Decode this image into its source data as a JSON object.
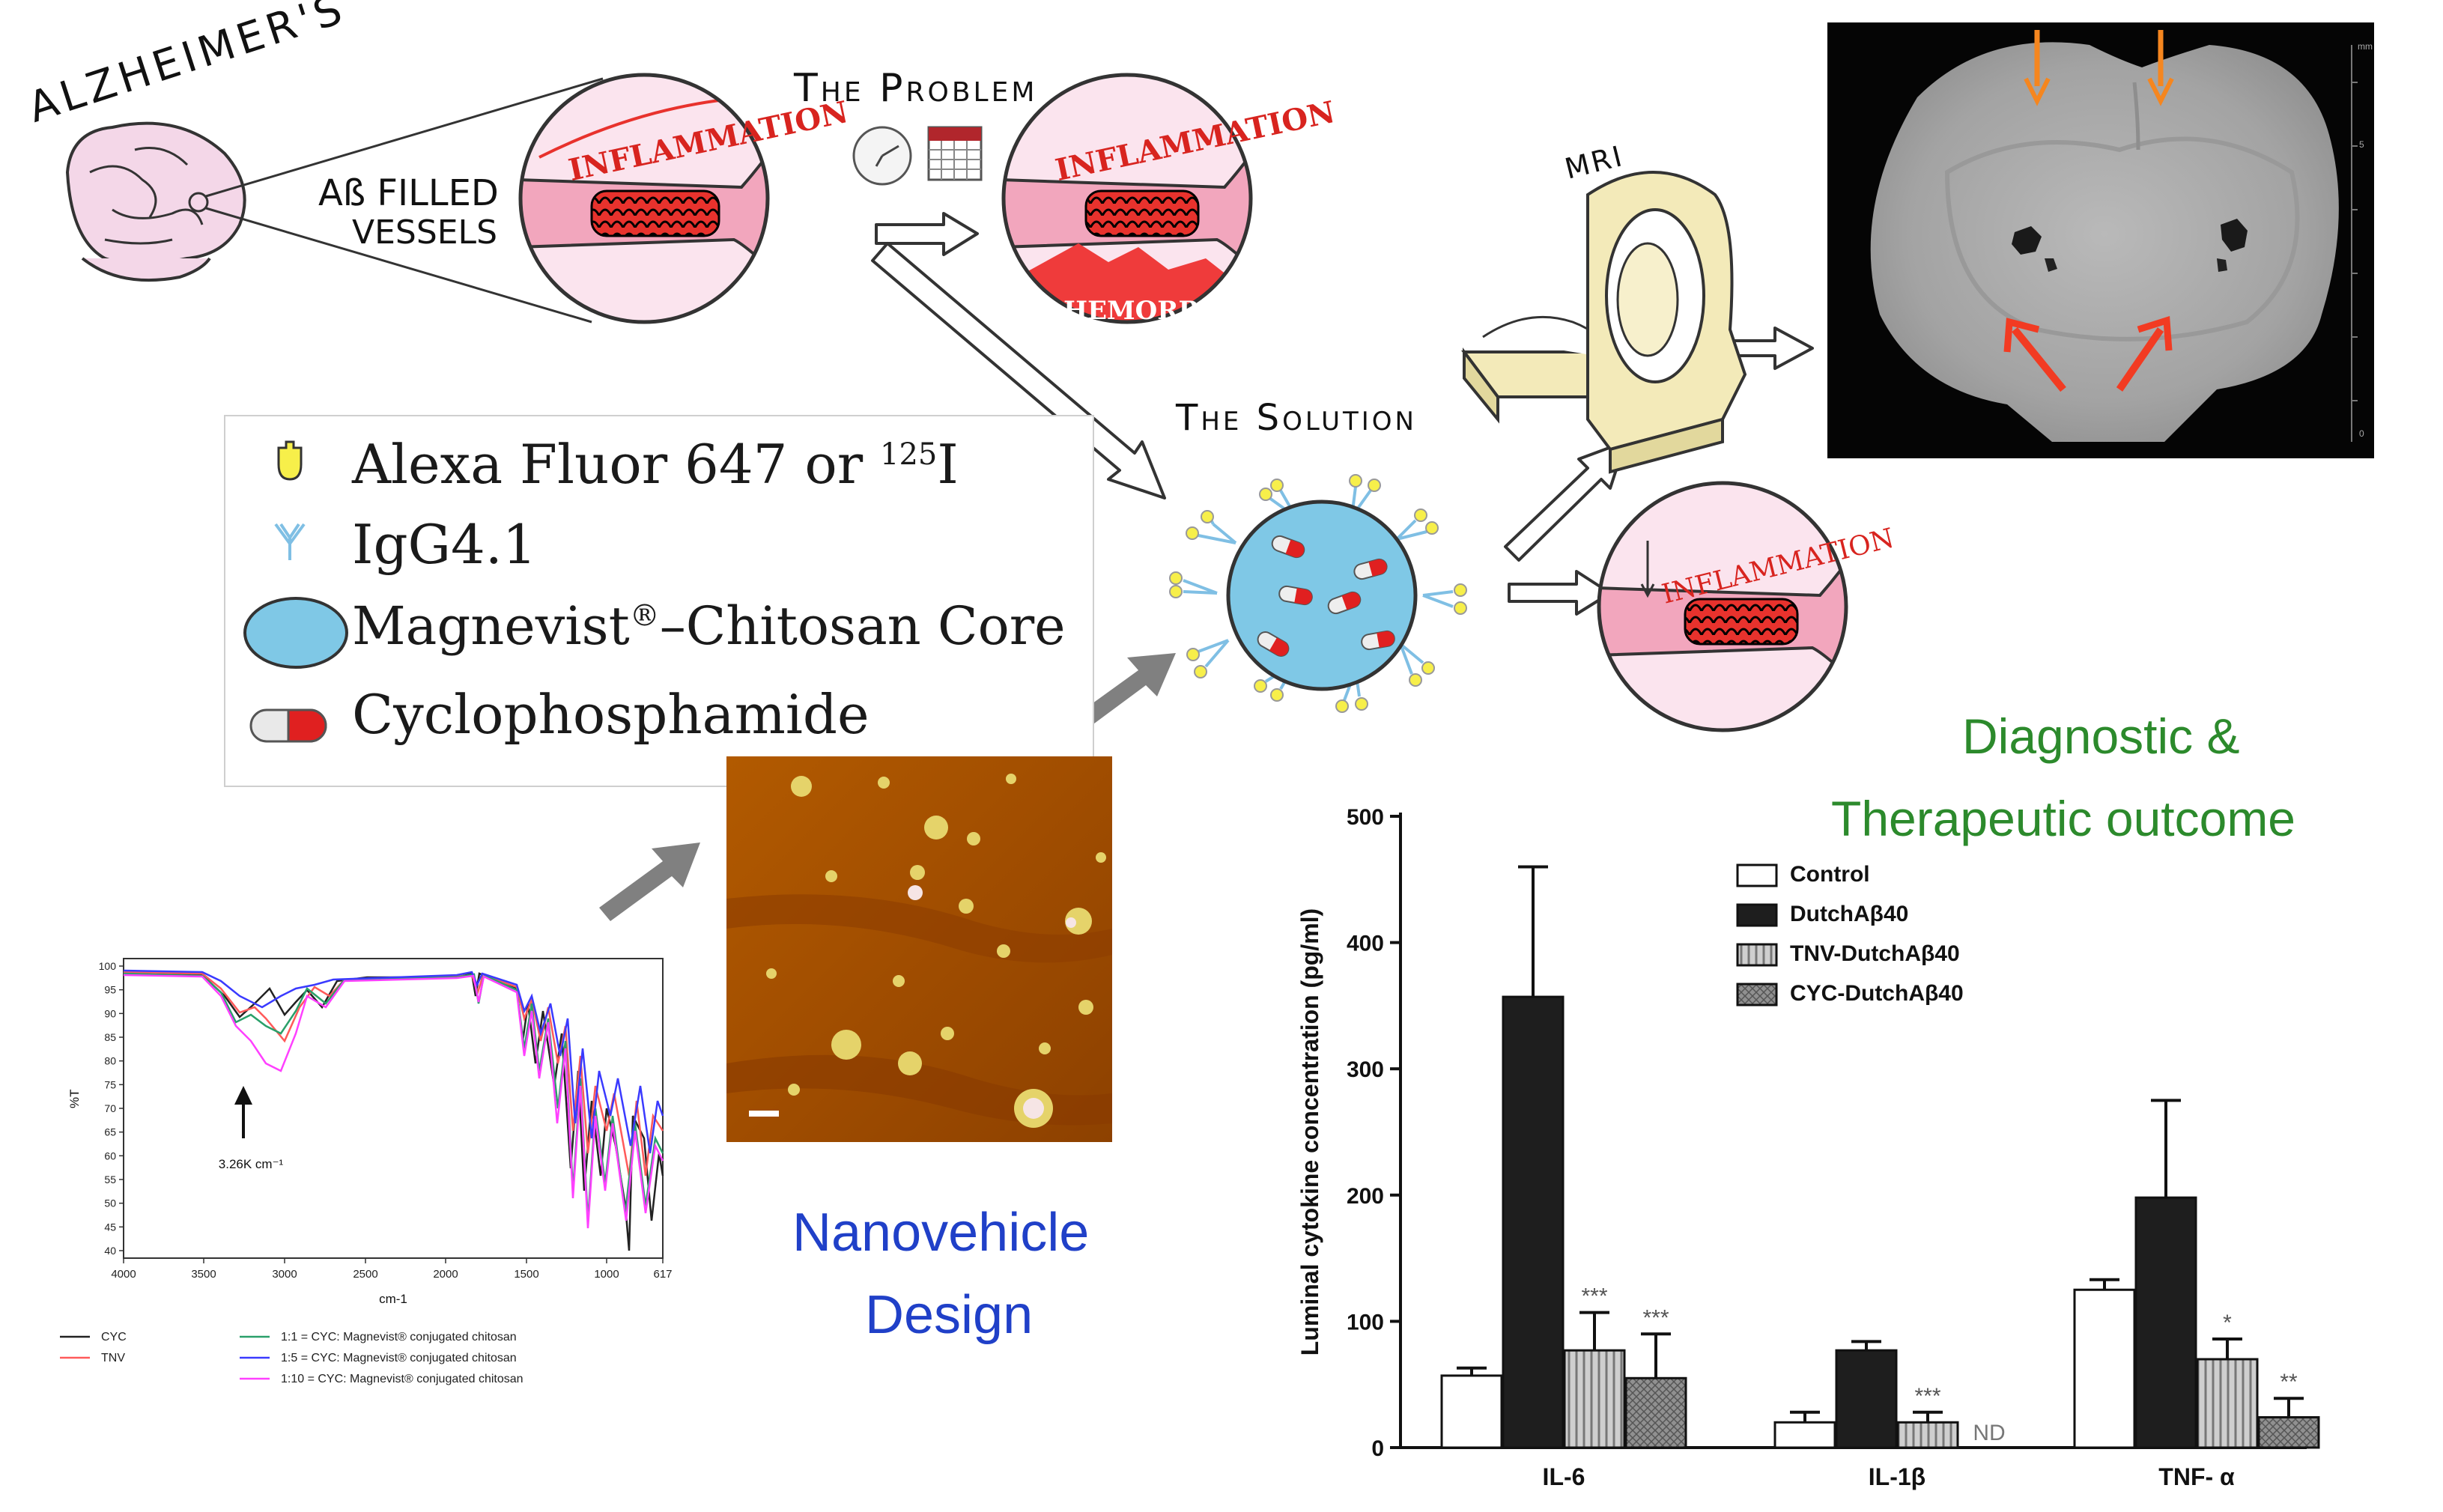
{
  "alzheimers_label": "ALZHEIMER'S",
  "vessels_label_line1": "Aß FILLED",
  "vessels_label_line2": "VESSELS",
  "problem_title": "The Problem",
  "solution_title": "The Solution",
  "mri_label": "MRI",
  "inflammation_word": "INFLAMMATION",
  "hemorrhage_word": "HEMORRHAGE",
  "legend": {
    "item1_main": "Alexa Fluor 647 or ",
    "item1_sup": "125",
    "item1_tail": "I",
    "item2": "IgG4.1",
    "item3_main": "Magnevist",
    "item3_sup": "®",
    "item3_tail": "–Chitosan Core",
    "item4": "Cyclophosphamide"
  },
  "outcome_line1": "Diagnostic &",
  "outcome_line2": "Therapeutic outcome",
  "design_line1": "Nanovehicle",
  "design_line2": "Design",
  "mri_scan": {
    "unit_label": "mm",
    "tick1": "5",
    "tick2": "0"
  },
  "spectrum": {
    "ylabel": "%T",
    "xlabel": "cm-1",
    "annotation": "3.26K cm⁻¹",
    "yticks": [
      "100",
      "95",
      "90",
      "85",
      "80",
      "75",
      "70",
      "65",
      "60",
      "55",
      "50",
      "45",
      "40"
    ],
    "xticks": [
      "4000",
      "3500",
      "3000",
      "2500",
      "2000",
      "1500",
      "1000",
      "617"
    ],
    "legend": [
      {
        "label": "CYC",
        "color": "#222222"
      },
      {
        "label": "TNV",
        "color": "#ff5a5a"
      },
      {
        "label": "1:1 = CYC: Magnevist® conjugated chitosan",
        "color": "#2aa06a"
      },
      {
        "label": "1:5 = CYC: Magnevist® conjugated chitosan",
        "color": "#3a3aff"
      },
      {
        "label": "1:10 = CYC: Magnevist® conjugated chitosan",
        "color": "#ff40ff"
      }
    ]
  },
  "chart_data": {
    "type": "bar",
    "title": "",
    "xlabel": "",
    "ylabel": "Luminal cytokine concentration (pg/ml)",
    "ylim": [
      0,
      500
    ],
    "yticks": [
      "0",
      "100",
      "200",
      "300",
      "400",
      "500"
    ],
    "categories": [
      "IL-6",
      "IL-1β",
      "TNF- α"
    ],
    "series": [
      {
        "name": "Control",
        "fill": "#ffffff",
        "values": [
          57,
          20,
          125
        ],
        "errors": [
          6,
          8,
          8
        ],
        "sig": [
          "",
          "",
          ""
        ]
      },
      {
        "name": "DutchΑβ40",
        "fill": "#1e1e1e",
        "values": [
          357,
          77,
          198
        ],
        "errors": [
          103,
          7,
          77
        ],
        "sig": [
          "",
          "",
          ""
        ]
      },
      {
        "name": "TNV-DutchΑβ40",
        "fill": "#cfcfcf",
        "values": [
          77,
          20,
          70
        ],
        "errors": [
          30,
          8,
          16
        ],
        "sig": [
          "***",
          "***",
          "*"
        ]
      },
      {
        "name": "CYC-DutchΑβ40",
        "fill": "#8a8a8a",
        "values": [
          55,
          null,
          24
        ],
        "errors": [
          35,
          null,
          15
        ],
        "sig": [
          "***",
          "ND",
          "**"
        ]
      }
    ]
  }
}
